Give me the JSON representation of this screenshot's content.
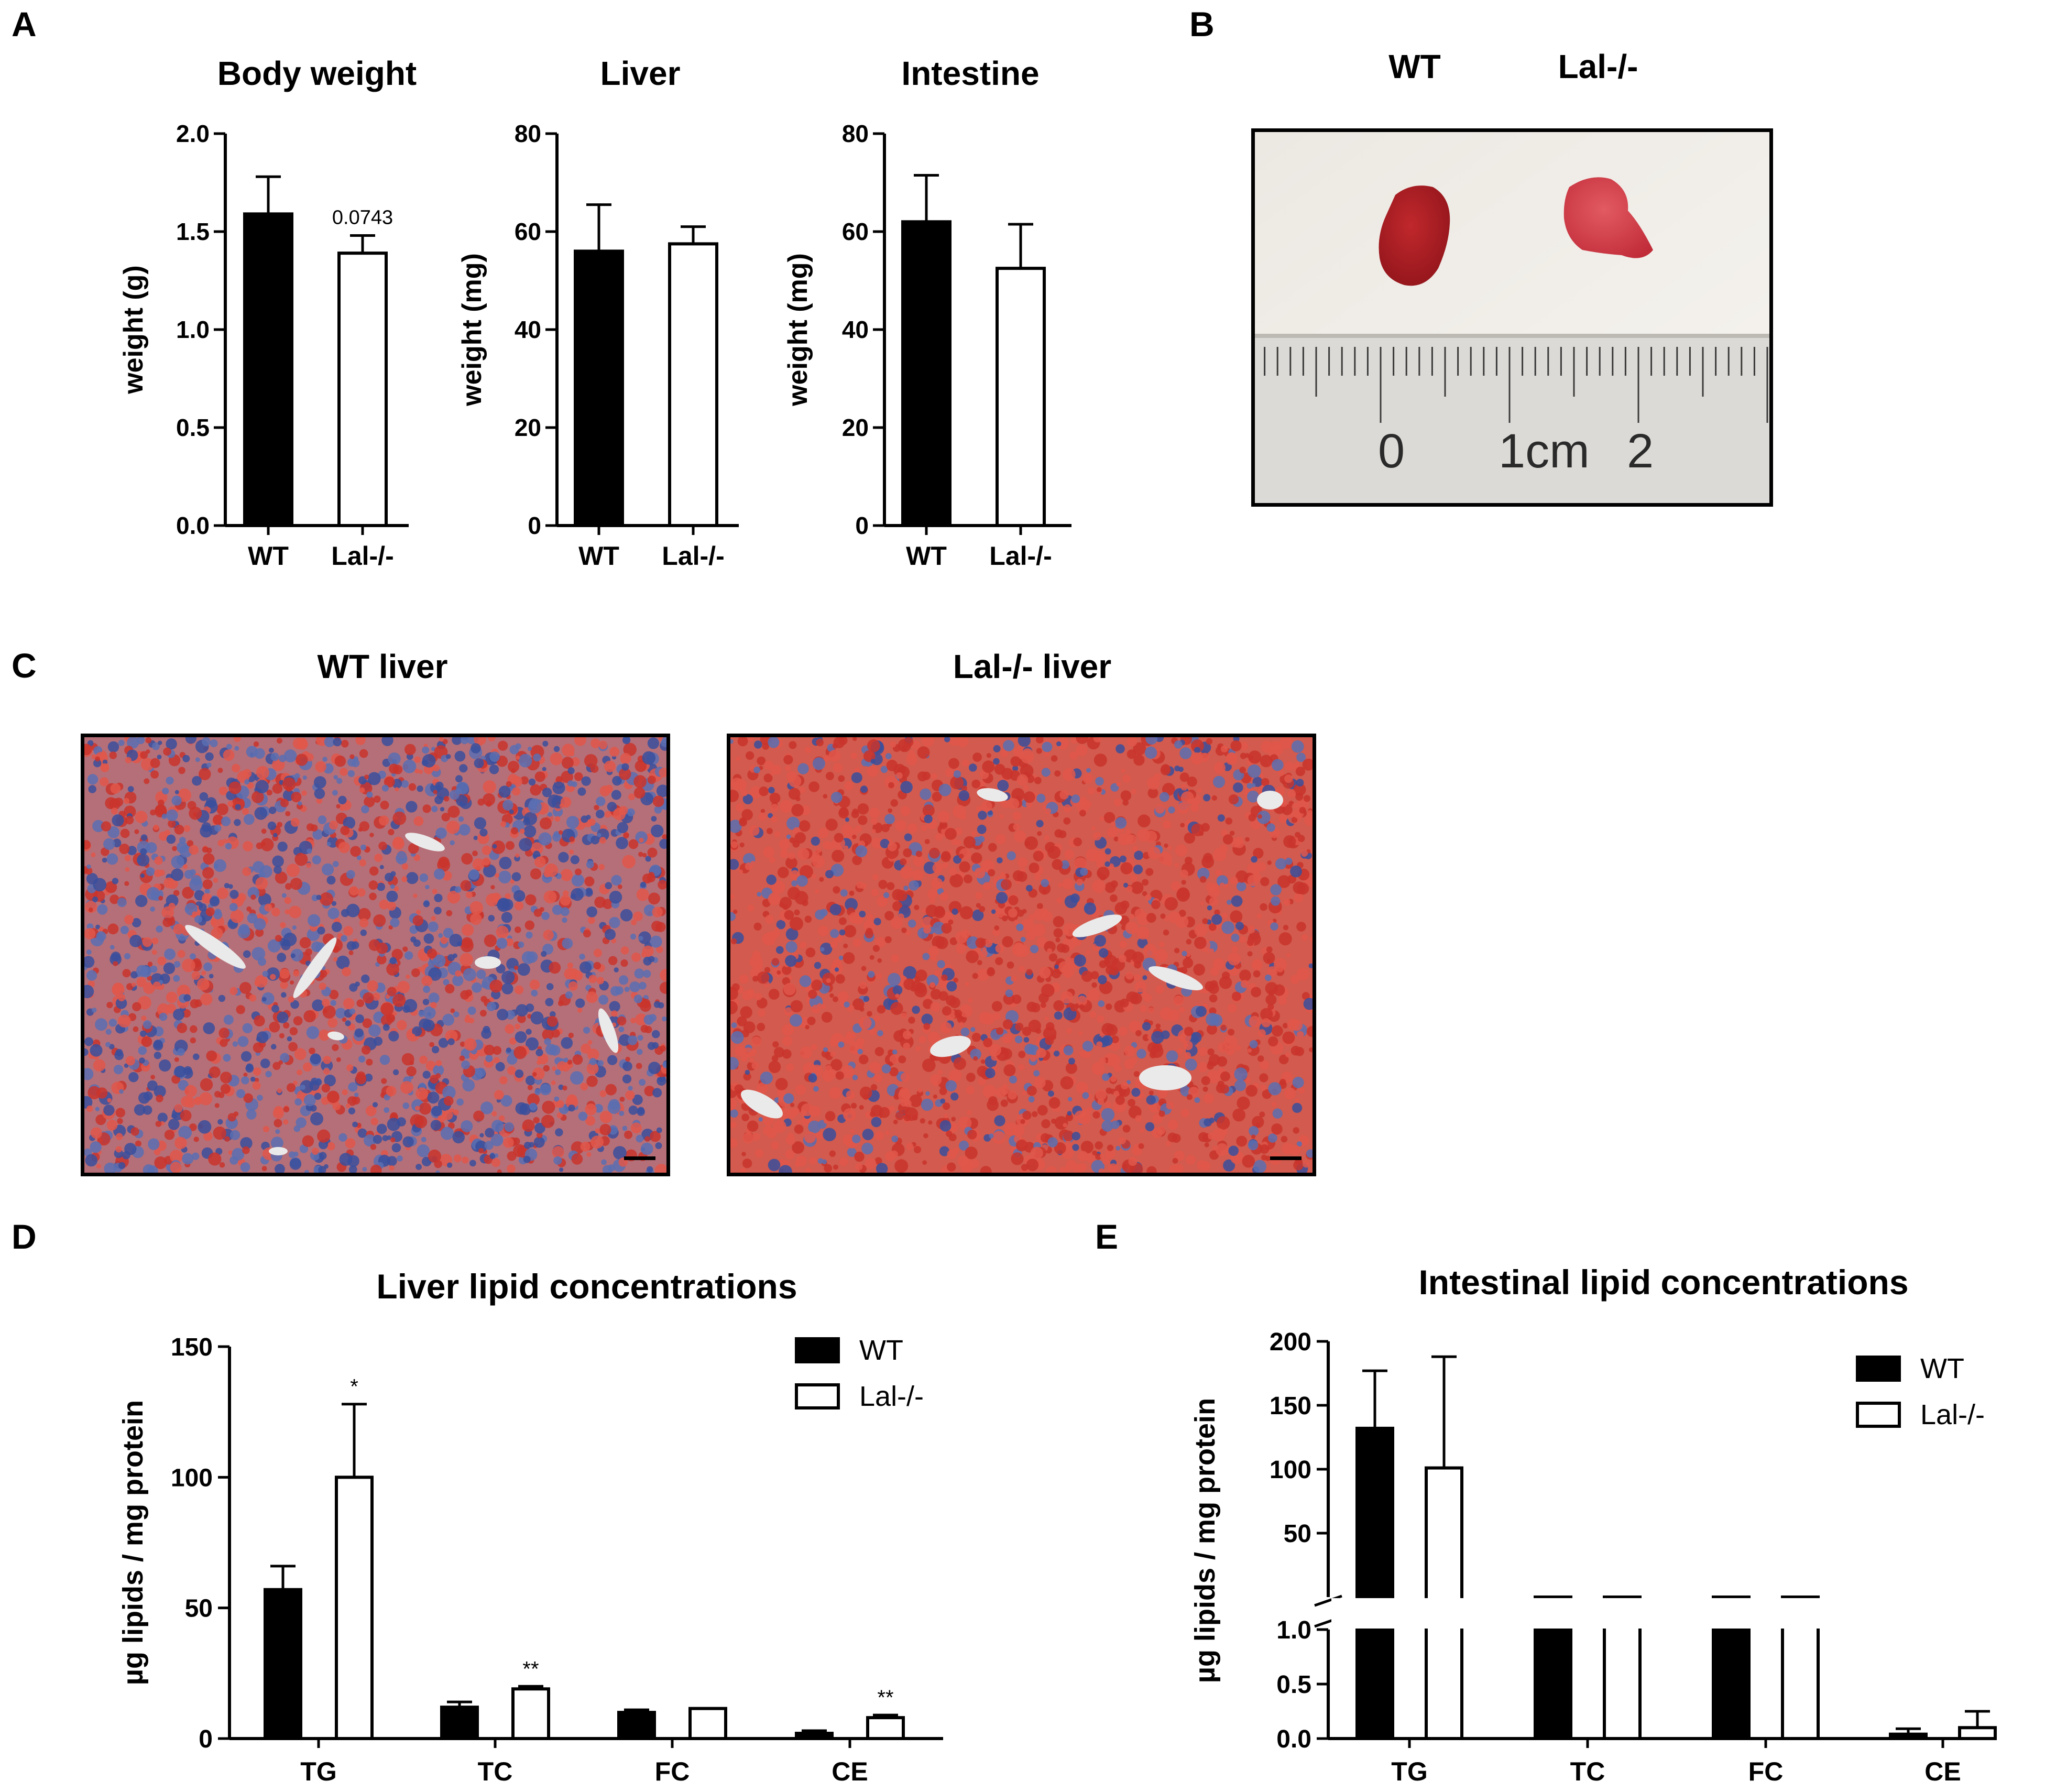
{
  "panels": {
    "a": "A",
    "b": "B",
    "c": "C",
    "d": "D",
    "e": "E"
  },
  "colors": {
    "wt_fill": "#000000",
    "lal_fill": "#ffffff",
    "stroke": "#000000"
  },
  "panel_b": {
    "label_wt": "WT",
    "label_lal": "Lal-/-",
    "ruler_numbers": [
      "0",
      "1cm",
      "2"
    ]
  },
  "panel_c": {
    "title_wt": "WT liver",
    "title_lal": "Lal-/- liver"
  },
  "chart_data": [
    {
      "id": "a1",
      "type": "bar",
      "title": "Body weight",
      "ylabel": "weight (g)",
      "categories": [
        "WT",
        "Lal-/-"
      ],
      "values": [
        1.59,
        1.39
      ],
      "errors": [
        0.19,
        0.09
      ],
      "annotations": [
        "",
        "0.0743"
      ],
      "ylim": [
        0,
        2.0
      ],
      "yticks": [
        0.0,
        0.5,
        1.0,
        1.5,
        2.0
      ],
      "ytick_labels": [
        "0.0",
        "0.5",
        "1.0",
        "1.5",
        "2.0"
      ]
    },
    {
      "id": "a2",
      "type": "bar",
      "title": "Liver",
      "ylabel": "weight (mg)",
      "categories": [
        "WT",
        "Lal-/-"
      ],
      "values": [
        56,
        57.5
      ],
      "errors": [
        9.5,
        3.5
      ],
      "annotations": [
        "",
        ""
      ],
      "ylim": [
        0,
        80
      ],
      "yticks": [
        0,
        20,
        40,
        60,
        80
      ],
      "ytick_labels": [
        "0",
        "20",
        "40",
        "60",
        "80"
      ]
    },
    {
      "id": "a3",
      "type": "bar",
      "title": "Intestine",
      "ylabel": "weight (mg)",
      "categories": [
        "WT",
        "Lal-/-"
      ],
      "values": [
        62,
        52.5
      ],
      "errors": [
        9.5,
        9
      ],
      "annotations": [
        "",
        ""
      ],
      "ylim": [
        0,
        80
      ],
      "yticks": [
        0,
        20,
        40,
        60,
        80
      ],
      "ytick_labels": [
        "0",
        "20",
        "40",
        "60",
        "80"
      ]
    },
    {
      "id": "d",
      "type": "bar",
      "title": "Liver lipid concentrations",
      "ylabel": "µg lipids / mg protein",
      "categories": [
        "TG",
        "TC",
        "FC",
        "CE"
      ],
      "series": [
        {
          "name": "WT",
          "values": [
            57,
            12,
            10,
            2
          ],
          "errors": [
            9,
            2,
            1,
            1
          ],
          "annotations": [
            "",
            "",
            "",
            ""
          ]
        },
        {
          "name": "Lal-/-",
          "values": [
            100,
            19,
            11.5,
            8
          ],
          "errors": [
            28,
            1,
            0,
            1
          ],
          "annotations": [
            "*",
            "**",
            "",
            "**"
          ]
        }
      ],
      "ylim": [
        0,
        150
      ],
      "yticks": [
        0,
        50,
        100,
        150
      ],
      "ytick_labels": [
        "0",
        "50",
        "100",
        "150"
      ],
      "legend": "top-right"
    },
    {
      "id": "e",
      "type": "bar",
      "title": "Intestinal lipid concentrations",
      "ylabel": "µg lipids / mg protein",
      "categories": [
        "TG",
        "TC",
        "FC",
        "CE"
      ],
      "broken_axis": {
        "lower": [
          0,
          1.0
        ],
        "upper": [
          0,
          200
        ]
      },
      "series": [
        {
          "name": "WT",
          "values": [
            132,
            1.0,
            1.0,
            0.04
          ],
          "errors": [
            45,
            0,
            0,
            0.05
          ]
        },
        {
          "name": "Lal-/-",
          "values": [
            101,
            1.0,
            1.0,
            0.1
          ],
          "errors": [
            87,
            0,
            0,
            0.15
          ]
        }
      ],
      "yticks_lower": [
        0.0,
        0.5,
        1.0
      ],
      "ytick_labels_lower": [
        "0.0",
        "0.5",
        "1.0"
      ],
      "yticks_upper": [
        50,
        100,
        150,
        200
      ],
      "ytick_labels_upper": [
        "50",
        "100",
        "150",
        "200"
      ],
      "legend": "top-right"
    }
  ]
}
